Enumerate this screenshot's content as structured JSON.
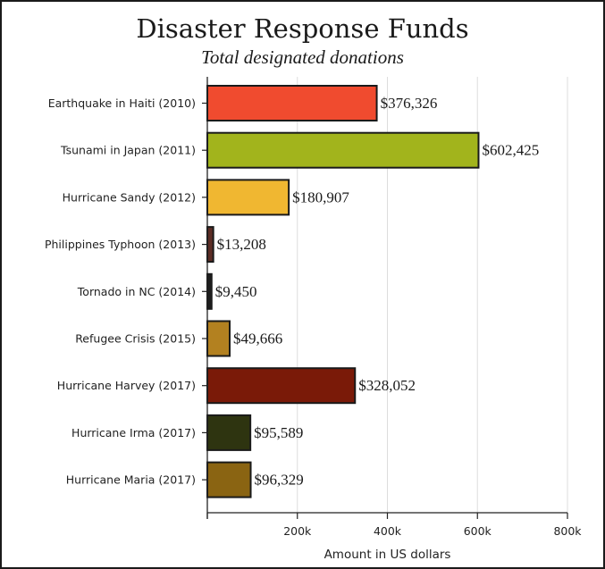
{
  "chart_data": {
    "type": "bar",
    "orientation": "horizontal",
    "title": "Disaster Response Funds",
    "subtitle": "Total designated donations",
    "xlabel": "Amount in US dollars",
    "ylabel": "",
    "xlim": [
      0,
      800000
    ],
    "grid": true,
    "legend": "none",
    "ticks": [
      {
        "value": 200000,
        "label": "200k"
      },
      {
        "value": 400000,
        "label": "400k"
      },
      {
        "value": 600000,
        "label": "600k"
      },
      {
        "value": 800000,
        "label": "800k"
      }
    ],
    "categories": [
      "Earthquake in Haiti (2010)",
      "Tsunami in Japan (2011)",
      "Hurricane Sandy (2012)",
      "Philippines Typhoon (2013)",
      "Tornado in NC (2014)",
      "Refugee Crisis (2015)",
      "Hurricane Harvey (2017)",
      "Hurricane Irma (2017)",
      "Hurricane Maria (2017)"
    ],
    "values": [
      376326,
      602425,
      180907,
      13208,
      9450,
      49666,
      328052,
      95589,
      96329
    ],
    "value_labels": [
      "$376,326",
      "$602,425",
      "$180,907",
      "$13,208",
      "$9,450",
      "$49,666",
      "$328,052",
      "$95,589",
      "$96,329"
    ],
    "colors": [
      "#f04b2f",
      "#a2b41c",
      "#f0b731",
      "#5c2d25",
      "#1e1e1e",
      "#b38120",
      "#7a1a08",
      "#2e3410",
      "#8a6412"
    ]
  }
}
